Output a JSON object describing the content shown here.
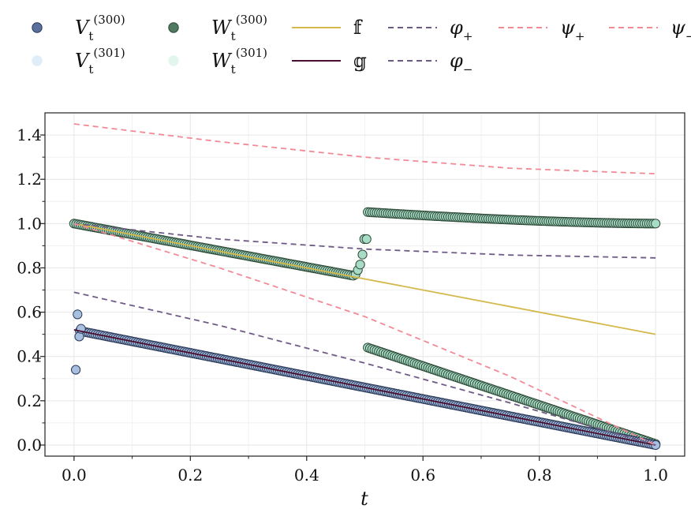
{
  "chart_data": {
    "type": "scatter",
    "title": "",
    "xlabel": "t",
    "ylabel": "",
    "xlim": [
      -0.05,
      1.05
    ],
    "ylim": [
      -0.05,
      1.5
    ],
    "xticks": [
      "0.0",
      "0.2",
      "0.4",
      "0.6",
      "0.8",
      "1.0"
    ],
    "yticks": [
      "0.0",
      "0.2",
      "0.4",
      "0.6",
      "0.8",
      "1.0",
      "1.2",
      "1.4"
    ],
    "grid": true,
    "legend_position": "top",
    "legend": [
      {
        "key": "V300",
        "base": "V",
        "sub": "t",
        "sup": "(300)",
        "kind": "marker",
        "fill": "#5a6f9c",
        "stroke": "#2a3a5a"
      },
      {
        "key": "V301",
        "base": "V",
        "sub": "t",
        "sup": "(301)",
        "kind": "marker",
        "fill": "#deedf8",
        "stroke": "#deedf8"
      },
      {
        "key": "W300",
        "base": "W",
        "sub": "t",
        "sup": "(300)",
        "kind": "marker",
        "fill": "#4f7a60",
        "stroke": "#2d4a38"
      },
      {
        "key": "W301",
        "base": "W",
        "sub": "t",
        "sup": "(301)",
        "kind": "marker",
        "fill": "#e2f6ee",
        "stroke": "#e2f6ee"
      },
      {
        "key": "f",
        "text": "𝕗",
        "kind": "line",
        "color": "#d4b84a",
        "dash": "none"
      },
      {
        "key": "g",
        "text": "𝕘",
        "kind": "line",
        "color": "#4a0f2e",
        "dash": "none"
      },
      {
        "key": "phi_plus",
        "base": "φ",
        "sub": "+",
        "kind": "line",
        "color": "#6e5a86",
        "dash": "7,5"
      },
      {
        "key": "phi_minus",
        "base": "φ",
        "sub": "−",
        "kind": "line",
        "color": "#6e5a86",
        "dash": "7,5"
      },
      {
        "key": "psi_plus",
        "base": "ψ",
        "sub": "+",
        "kind": "line",
        "color": "#f28a96",
        "dash": "7,5"
      },
      {
        "key": "psi_minus",
        "base": "ψ",
        "sub": "−",
        "kind": "line",
        "color": "#f28a96",
        "dash": "7,5"
      }
    ],
    "series": [
      {
        "key": "f",
        "kind": "line",
        "color": "#d4b84a",
        "x": [
          0.0,
          0.5,
          1.0
        ],
        "y": [
          1.0,
          0.75,
          0.5
        ]
      },
      {
        "key": "g",
        "kind": "line",
        "color": "#4a0f2e",
        "x": [
          0.0,
          1.0
        ],
        "y": [
          0.52,
          0.0
        ]
      },
      {
        "key": "phi_plus",
        "kind": "line",
        "color": "#6e5a86",
        "x": [
          0.0,
          0.25,
          0.5,
          0.75,
          1.0
        ],
        "y": [
          1.0,
          0.93,
          0.885,
          0.858,
          0.845
        ]
      },
      {
        "key": "phi_minus",
        "kind": "line",
        "color": "#6e5a86",
        "x": [
          0.0,
          0.25,
          0.5,
          0.75,
          1.0
        ],
        "y": [
          0.69,
          0.54,
          0.37,
          0.19,
          0.0
        ]
      },
      {
        "key": "psi_plus",
        "kind": "line",
        "color": "#f28a96",
        "x": [
          0.0,
          0.25,
          0.5,
          0.75,
          1.0
        ],
        "y": [
          1.45,
          1.37,
          1.3,
          1.25,
          1.225
        ]
      },
      {
        "key": "psi_minus",
        "kind": "line",
        "color": "#f28a96",
        "x": [
          0.0,
          0.25,
          0.5,
          0.75,
          1.0
        ],
        "y": [
          1.0,
          0.8,
          0.58,
          0.31,
          0.0
        ]
      },
      {
        "key": "W300",
        "kind": "scatter",
        "color": "#a8dcc6",
        "stroke": "#2d4a38",
        "segments": [
          {
            "x_start": 0.0,
            "x_end": 0.48,
            "y_start": 1.0,
            "y_end": 0.765,
            "count": 130
          },
          {
            "x_start": 0.505,
            "x_end": 1.0,
            "y_start": 1.052,
            "y_end": 1.0,
            "count": 130
          },
          {
            "x_start": 0.505,
            "x_end": 1.0,
            "y_start": 0.44,
            "y_end": 0.005,
            "count": 130
          }
        ],
        "extra_x": [
          0.484,
          0.488,
          0.492,
          0.496,
          0.499,
          0.503
        ],
        "extra_y": [
          0.77,
          0.79,
          0.815,
          0.86,
          0.93,
          0.93
        ]
      },
      {
        "key": "V300",
        "kind": "scatter",
        "color": "#a9bfe0",
        "stroke": "#2a3a5a",
        "segments": [
          {
            "x_start": 0.01,
            "x_end": 1.0,
            "y_start": 0.515,
            "y_end": 0.0,
            "count": 260
          }
        ],
        "extra_x": [
          0.003,
          0.006,
          0.009,
          0.012
        ],
        "extra_y": [
          0.34,
          0.59,
          0.49,
          0.525
        ]
      }
    ]
  }
}
